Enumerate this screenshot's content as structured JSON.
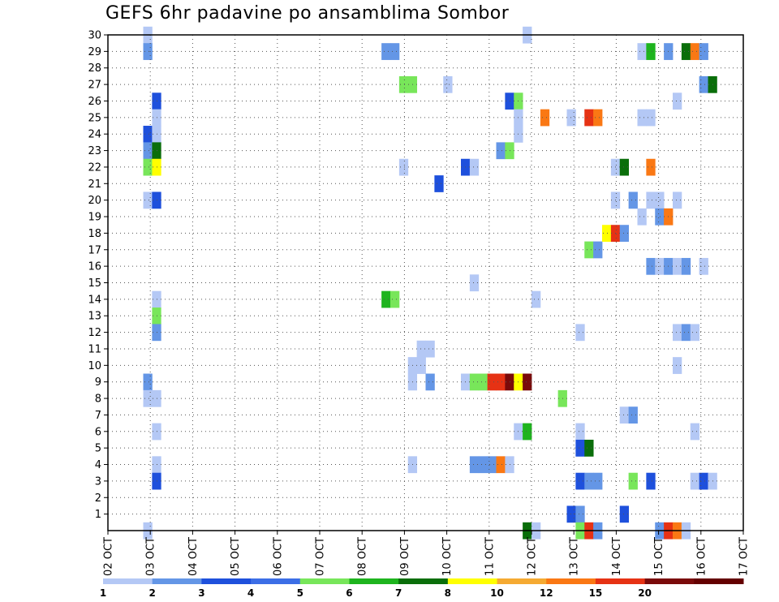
{
  "chart_data": {
    "type": "heatmap",
    "title": "GEFS 6hr padavine po ansamblima Sombor",
    "x_labels": [
      "02 OCT",
      "03 OCT",
      "04 OCT",
      "05 OCT",
      "06 OCT",
      "07 OCT",
      "08 OCT",
      "09 OCT",
      "10 OCT",
      "11 OCT",
      "12 OCT",
      "13 OCT",
      "14 OCT",
      "15 OCT",
      "16 OCT",
      "17 OCT"
    ],
    "y_labels": [
      "1",
      "2",
      "3",
      "4",
      "5",
      "6",
      "7",
      "8",
      "9",
      "10",
      "11",
      "12",
      "13",
      "14",
      "15",
      "16",
      "17",
      "18",
      "19",
      "20",
      "21",
      "22",
      "23",
      "24",
      "25",
      "26",
      "27",
      "28",
      "29",
      "30"
    ],
    "x_unit": "6-hour steps from 02 OCT 00Z",
    "y_range": [
      0,
      30
    ],
    "grid": true,
    "colorbar": {
      "labels": [
        "1",
        "2",
        "3",
        "4",
        "5",
        "6",
        "7",
        "8",
        "10",
        "12",
        "15",
        "20"
      ],
      "colors": [
        "#b4c8f5",
        "#6496e6",
        "#1e50dc",
        "#3c6ee6",
        "#78e65a",
        "#1eb41e",
        "#0a6e0a",
        "#ffff00",
        "#f5aa32",
        "#fa7814",
        "#e63214",
        "#7a0a0a",
        "#640000"
      ]
    },
    "cells": [
      [
        4,
        30,
        0
      ],
      [
        4,
        29,
        1
      ],
      [
        4,
        24,
        2
      ],
      [
        4,
        23,
        1
      ],
      [
        4,
        22,
        4
      ],
      [
        4,
        20,
        0
      ],
      [
        4,
        9,
        1
      ],
      [
        4,
        8,
        0
      ],
      [
        4,
        0,
        0
      ],
      [
        5,
        26,
        2
      ],
      [
        5,
        25,
        0
      ],
      [
        5,
        24,
        0
      ],
      [
        5,
        23,
        6
      ],
      [
        5,
        22,
        7
      ],
      [
        5,
        20,
        2
      ],
      [
        5,
        14,
        0
      ],
      [
        5,
        13,
        4
      ],
      [
        5,
        12,
        1
      ],
      [
        5,
        8,
        0
      ],
      [
        5,
        6,
        0
      ],
      [
        5,
        4,
        0
      ],
      [
        5,
        3,
        2
      ],
      [
        31,
        29,
        1
      ],
      [
        31,
        14,
        5
      ],
      [
        32,
        29,
        1
      ],
      [
        32,
        14,
        4
      ],
      [
        33,
        27,
        4
      ],
      [
        33,
        22,
        0
      ],
      [
        34,
        27,
        4
      ],
      [
        34,
        10,
        0
      ],
      [
        34,
        9,
        0
      ],
      [
        34,
        4,
        0
      ],
      [
        35,
        11,
        0
      ],
      [
        35,
        10,
        0
      ],
      [
        36,
        11,
        0
      ],
      [
        36,
        9,
        1
      ],
      [
        37,
        21,
        2
      ],
      [
        38,
        27,
        0
      ],
      [
        40,
        22,
        2
      ],
      [
        40,
        9,
        0
      ],
      [
        41,
        22,
        0
      ],
      [
        41,
        15,
        0
      ],
      [
        41,
        9,
        4
      ],
      [
        41,
        4,
        1
      ],
      [
        42,
        9,
        4
      ],
      [
        42,
        4,
        1
      ],
      [
        43,
        9,
        10
      ],
      [
        43,
        4,
        1
      ],
      [
        44,
        23,
        1
      ],
      [
        44,
        9,
        10
      ],
      [
        44,
        4,
        9
      ],
      [
        45,
        26,
        2
      ],
      [
        45,
        23,
        4
      ],
      [
        45,
        9,
        11
      ],
      [
        45,
        4,
        0
      ],
      [
        46,
        26,
        4
      ],
      [
        46,
        25,
        0
      ],
      [
        46,
        24,
        0
      ],
      [
        46,
        9,
        7
      ],
      [
        46,
        6,
        0
      ],
      [
        47,
        30,
        0
      ],
      [
        47,
        9,
        11
      ],
      [
        47,
        6,
        5
      ],
      [
        47,
        0,
        6
      ],
      [
        48,
        14,
        0
      ],
      [
        48,
        0,
        0
      ],
      [
        49,
        25,
        9
      ],
      [
        51,
        8,
        4
      ],
      [
        52,
        25,
        0
      ],
      [
        52,
        1,
        2
      ],
      [
        53,
        12,
        0
      ],
      [
        53,
        6,
        0
      ],
      [
        53,
        5,
        2
      ],
      [
        53,
        3,
        2
      ],
      [
        53,
        1,
        1
      ],
      [
        53,
        0,
        4
      ],
      [
        54,
        25,
        10
      ],
      [
        54,
        17,
        4
      ],
      [
        54,
        5,
        6
      ],
      [
        54,
        3,
        1
      ],
      [
        54,
        0,
        10
      ],
      [
        55,
        25,
        9
      ],
      [
        55,
        17,
        1
      ],
      [
        55,
        3,
        1
      ],
      [
        55,
        0,
        1
      ],
      [
        56,
        18,
        7
      ],
      [
        57,
        22,
        0
      ],
      [
        57,
        20,
        0
      ],
      [
        57,
        18,
        10
      ],
      [
        58,
        22,
        6
      ],
      [
        58,
        18,
        1
      ],
      [
        58,
        7,
        0
      ],
      [
        58,
        1,
        2
      ],
      [
        59,
        20,
        1
      ],
      [
        59,
        7,
        1
      ],
      [
        59,
        3,
        4
      ],
      [
        60,
        29,
        0
      ],
      [
        60,
        25,
        0
      ],
      [
        60,
        19,
        0
      ],
      [
        61,
        29,
        5
      ],
      [
        61,
        25,
        0
      ],
      [
        61,
        22,
        9
      ],
      [
        61,
        20,
        0
      ],
      [
        61,
        16,
        1
      ],
      [
        61,
        3,
        2
      ],
      [
        62,
        20,
        0
      ],
      [
        62,
        19,
        1
      ],
      [
        62,
        16,
        0
      ],
      [
        62,
        0,
        1
      ],
      [
        63,
        29,
        1
      ],
      [
        63,
        19,
        9
      ],
      [
        63,
        16,
        1
      ],
      [
        63,
        0,
        10
      ],
      [
        64,
        26,
        0
      ],
      [
        64,
        20,
        0
      ],
      [
        64,
        16,
        0
      ],
      [
        64,
        12,
        0
      ],
      [
        64,
        10,
        0
      ],
      [
        64,
        0,
        9
      ],
      [
        65,
        29,
        6
      ],
      [
        65,
        16,
        1
      ],
      [
        65,
        12,
        1
      ],
      [
        65,
        0,
        0
      ],
      [
        66,
        29,
        9
      ],
      [
        66,
        12,
        0
      ],
      [
        66,
        6,
        0
      ],
      [
        66,
        3,
        0
      ],
      [
        67,
        29,
        1
      ],
      [
        67,
        27,
        1
      ],
      [
        67,
        16,
        0
      ],
      [
        67,
        3,
        2
      ],
      [
        68,
        27,
        6
      ],
      [
        68,
        3,
        0
      ]
    ]
  }
}
